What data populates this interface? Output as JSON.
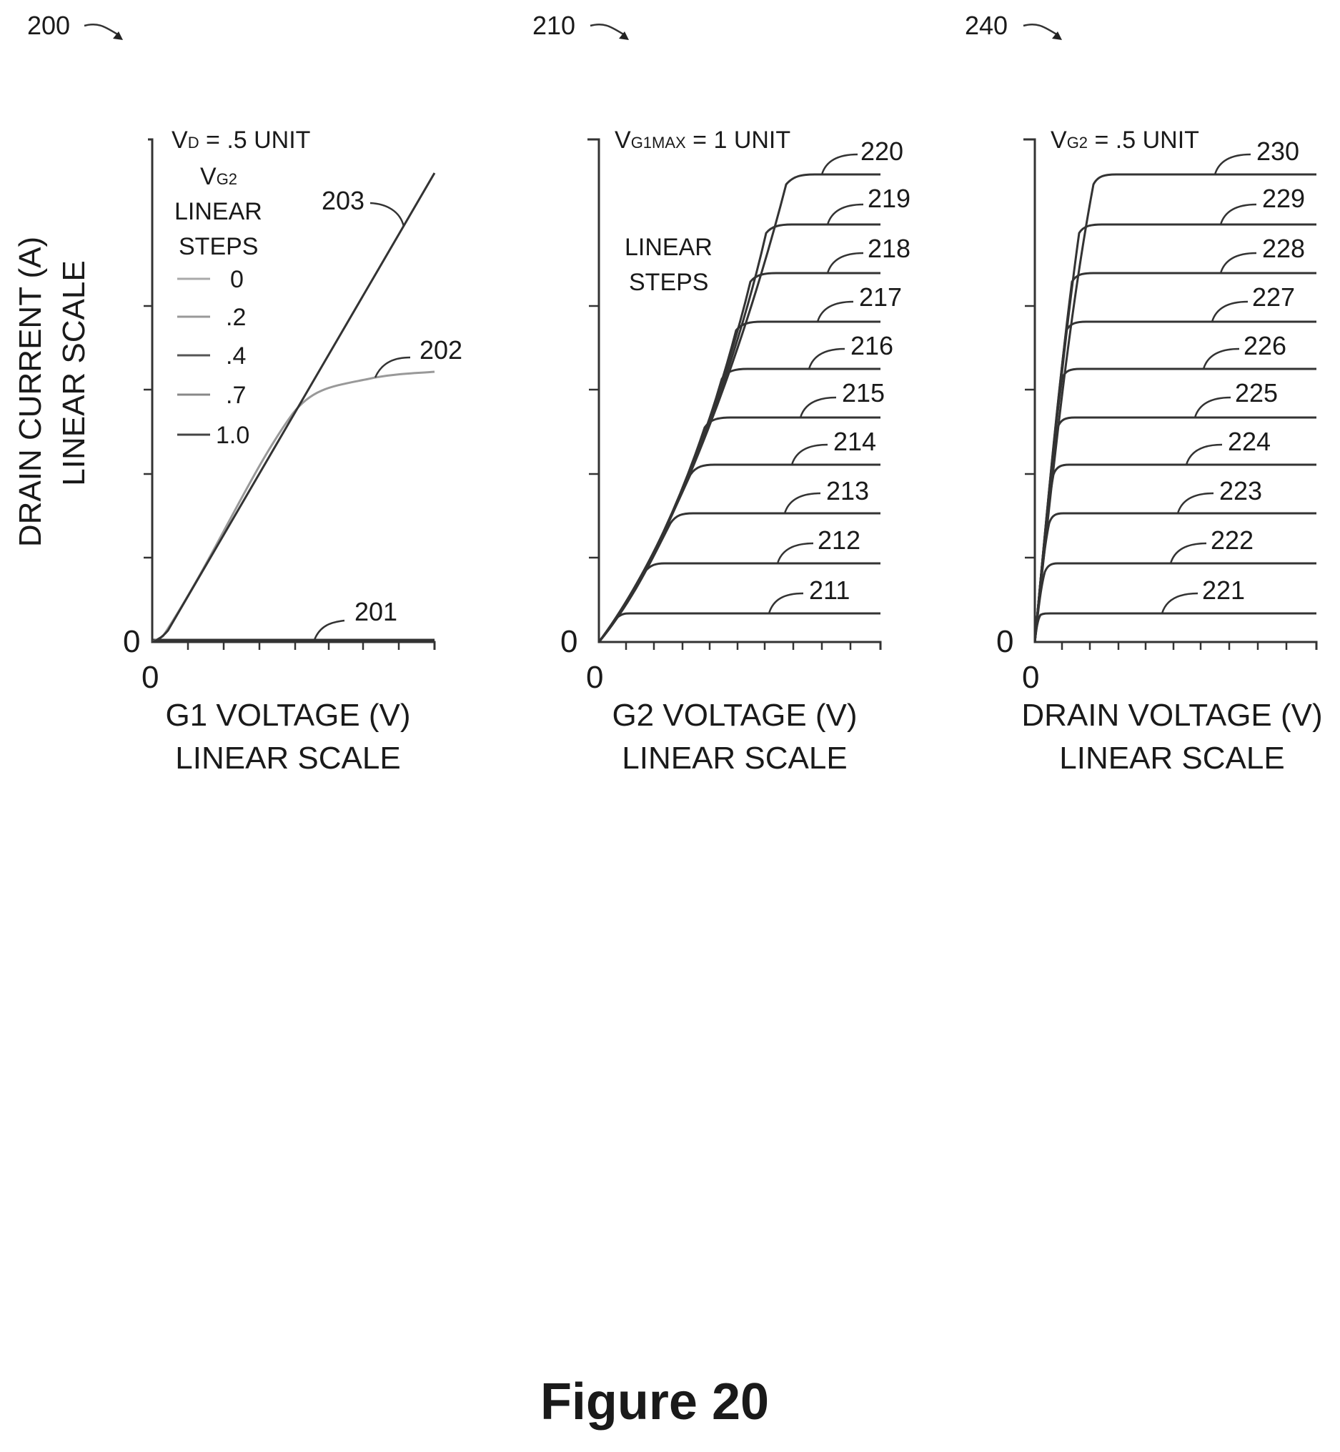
{
  "figure_title": "Figure 20",
  "panels": [
    {
      "ref": "200",
      "y_axis_title": [
        "DRAIN CURRENT (A)",
        "LINEAR SCALE"
      ],
      "x_axis_title": [
        "G1 VOLTAGE (V)",
        "LINEAR SCALE"
      ],
      "condition": {
        "main": "V",
        "sub": "D",
        "rest": " = .5 UNIT"
      },
      "legend_title": {
        "main": "V",
        "sub": "G2",
        "line2": "LINEAR",
        "line3": "STEPS"
      },
      "legend_items": [
        {
          "label": "0",
          "color": "#aaaaaa"
        },
        {
          "label": ".2",
          "color": "#999999"
        },
        {
          "label": ".4",
          "color": "#555555"
        },
        {
          "label": ".7",
          "color": "#888888"
        },
        {
          "label": "1.0",
          "color": "#444444"
        }
      ],
      "curve_labels": [
        "201",
        "202",
        "203"
      ],
      "origin_y": "0",
      "origin_x": "0"
    },
    {
      "ref": "210",
      "x_axis_title": [
        "G2 VOLTAGE (V)",
        "LINEAR SCALE"
      ],
      "condition": {
        "main": "V",
        "sub": "G1MAX",
        "rest": " = 1 UNIT"
      },
      "note": [
        "LINEAR",
        "STEPS"
      ],
      "curve_labels": [
        "211",
        "212",
        "213",
        "214",
        "215",
        "216",
        "217",
        "218",
        "219",
        "220"
      ],
      "origin_y": "0",
      "origin_x": "0"
    },
    {
      "ref": "240",
      "x_axis_title": [
        "DRAIN VOLTAGE (V)",
        "LINEAR SCALE"
      ],
      "condition": {
        "main": "V",
        "sub": "G2",
        "rest": " = .5 UNIT"
      },
      "curve_labels": [
        "221",
        "222",
        "223",
        "224",
        "225",
        "226",
        "227",
        "228",
        "229",
        "230"
      ],
      "origin_y": "0",
      "origin_x": "0"
    }
  ],
  "chart_data": [
    {
      "type": "line",
      "xlabel": "G1 VOLTAGE (V) LINEAR SCALE",
      "ylabel": "DRAIN CURRENT (A) LINEAR SCALE",
      "grid": false,
      "series": [
        {
          "name": "201",
          "x": [
            0,
            0.1,
            0.5,
            1.0
          ],
          "y": [
            0,
            0,
            0,
            0
          ]
        },
        {
          "name": "202",
          "x": [
            0,
            0.04,
            0.3,
            0.5,
            0.6,
            0.75,
            1.0
          ],
          "y": [
            0,
            0,
            0.47,
            0.46,
            0.5,
            0.53,
            0.55
          ]
        },
        {
          "name": "203",
          "x": [
            0,
            0.04,
            1.0
          ],
          "y": [
            0,
            0.02,
            0.93
          ]
        }
      ]
    },
    {
      "type": "line",
      "xlabel": "G2 VOLTAGE (V) LINEAR SCALE",
      "ylabel": "DRAIN CURRENT (A) LINEAR SCALE",
      "grid": false,
      "series": [
        {
          "name": "211",
          "x": [
            0,
            0.09,
            1.0
          ],
          "y": [
            0,
            0.056,
            0.056
          ]
        },
        {
          "name": "212",
          "x": [
            0,
            0.19,
            1.0
          ],
          "y": [
            0,
            0.152,
            0.152
          ]
        },
        {
          "name": "213",
          "x": [
            0,
            0.28,
            1.0
          ],
          "y": [
            0,
            0.252,
            0.252
          ]
        },
        {
          "name": "214",
          "x": [
            0,
            0.36,
            1.0
          ],
          "y": [
            0,
            0.35,
            0.35
          ]
        },
        {
          "name": "215",
          "x": [
            0,
            0.42,
            1.0
          ],
          "y": [
            0,
            0.445,
            0.445
          ]
        },
        {
          "name": "216",
          "x": [
            0,
            0.49,
            1.0
          ],
          "y": [
            0,
            0.54,
            0.54
          ]
        },
        {
          "name": "217",
          "x": [
            0,
            0.54,
            1.0
          ],
          "y": [
            0,
            0.635,
            0.635
          ]
        },
        {
          "name": "218",
          "x": [
            0,
            0.6,
            1.0
          ],
          "y": [
            0,
            0.73,
            0.73
          ]
        },
        {
          "name": "219",
          "x": [
            0,
            0.65,
            1.0
          ],
          "y": [
            0,
            0.83,
            0.83
          ]
        },
        {
          "name": "220",
          "x": [
            0,
            0.72,
            1.0
          ],
          "y": [
            0,
            0.925,
            0.925
          ]
        }
      ]
    },
    {
      "type": "line",
      "xlabel": "DRAIN VOLTAGE (V) LINEAR SCALE",
      "ylabel": "DRAIN CURRENT (A) LINEAR SCALE",
      "grid": false,
      "series": [
        {
          "name": "221",
          "x": [
            0,
            0.03,
            1.0
          ],
          "y": [
            0,
            0.056,
            0.056
          ]
        },
        {
          "name": "222",
          "x": [
            0,
            0.06,
            1.0
          ],
          "y": [
            0,
            0.152,
            0.152
          ]
        },
        {
          "name": "223",
          "x": [
            0,
            0.08,
            1.0
          ],
          "y": [
            0,
            0.252,
            0.252
          ]
        },
        {
          "name": "224",
          "x": [
            0,
            0.1,
            1.0
          ],
          "y": [
            0,
            0.35,
            0.35
          ]
        },
        {
          "name": "225",
          "x": [
            0,
            0.12,
            1.0
          ],
          "y": [
            0,
            0.445,
            0.445
          ]
        },
        {
          "name": "226",
          "x": [
            0,
            0.14,
            1.0
          ],
          "y": [
            0,
            0.54,
            0.54
          ]
        },
        {
          "name": "227",
          "x": [
            0,
            0.16,
            1.0
          ],
          "y": [
            0,
            0.635,
            0.635
          ]
        },
        {
          "name": "228",
          "x": [
            0,
            0.19,
            1.0
          ],
          "y": [
            0,
            0.73,
            0.73
          ]
        },
        {
          "name": "229",
          "x": [
            0,
            0.22,
            1.0
          ],
          "y": [
            0,
            0.83,
            0.83
          ]
        },
        {
          "name": "230",
          "x": [
            0,
            0.27,
            1.0
          ],
          "y": [
            0,
            0.925,
            0.925
          ]
        }
      ]
    }
  ]
}
